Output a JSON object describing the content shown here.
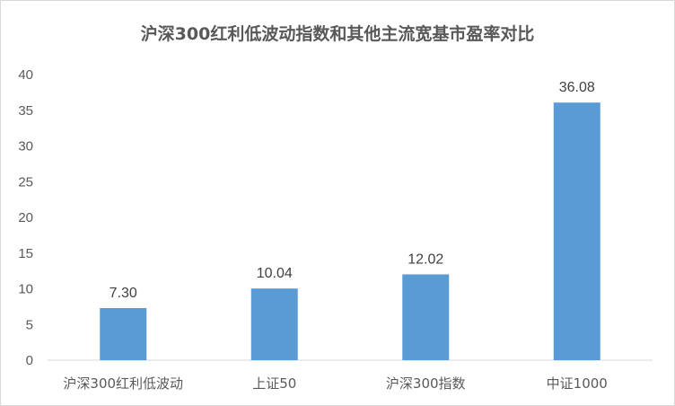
{
  "chart_data": {
    "type": "bar",
    "title": "沪深300红利低波动指数和其他主流宽基市盈率对比",
    "categories": [
      "沪深300红利低波动",
      "上证50",
      "沪深300指数",
      "中证1000"
    ],
    "values": [
      7.3,
      10.04,
      12.02,
      36.08
    ],
    "data_labels": [
      "7.30",
      "10.04",
      "12.02",
      "36.08"
    ],
    "yticks": [
      "0",
      "5",
      "10",
      "15",
      "20",
      "25",
      "30",
      "35",
      "40"
    ],
    "ylim": [
      0,
      40
    ],
    "xlabel": "",
    "ylabel": "",
    "grid": false,
    "legend": false,
    "bar_color": "#5b9bd5",
    "axis_color": "#d9d9d9"
  }
}
